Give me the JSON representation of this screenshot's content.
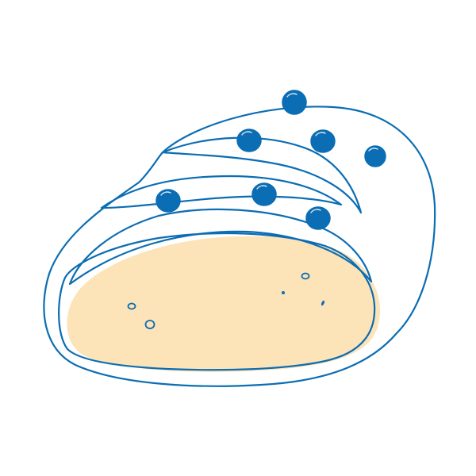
{
  "illustration": {
    "subject": "bread-loaf-icon",
    "colors": {
      "outline": "#0b6db3",
      "seed": "#0b6db3",
      "crumb_fill": "#fde3b8",
      "background": "#ffffff"
    }
  }
}
